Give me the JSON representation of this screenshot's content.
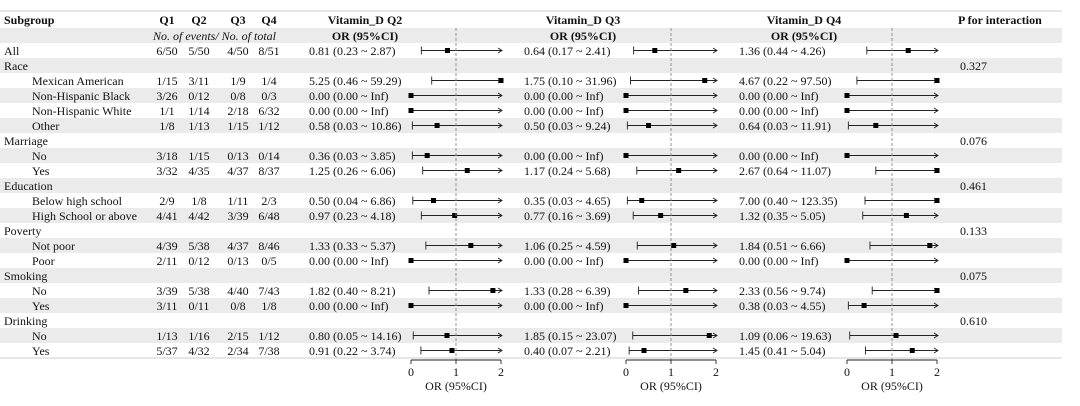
{
  "header": {
    "subgroup": "Subgroup",
    "q1": "Q1",
    "q2": "Q2",
    "q3": "Q3",
    "q4": "Q4",
    "subheader": "No. of events/ No. of total",
    "panel_titles": [
      "Vitamin_D Q2",
      "Vitamin_D Q3",
      "Vitamin_D Q4"
    ],
    "or_ci": "OR (95%CI)",
    "p_interaction": "P for interaction"
  },
  "axis": {
    "label": "OR (95%CI)",
    "ticks": [
      0,
      1,
      2
    ],
    "ref_line": 1
  },
  "colors": {
    "stripe": "#ebebeb",
    "line": "#222222",
    "ref": "#888888"
  },
  "chart_data": {
    "type": "forest",
    "xlim": [
      0,
      2
    ],
    "reference": 1,
    "panels": [
      "Vitamin_D Q2",
      "Vitamin_D Q3",
      "Vitamin_D Q4"
    ],
    "rows": [
      {
        "label": "All",
        "indent": false,
        "events": [
          "6/50",
          "5/50",
          "4/50",
          "8/51"
        ],
        "text": [
          "0.81 (0.23 ~ 2.87)",
          "0.64 (0.17 ~ 2.41)",
          "1.36 (0.44 ~ 4.26)"
        ],
        "est": [
          0.81,
          0.64,
          1.36
        ],
        "lo": [
          0.23,
          0.17,
          0.44
        ],
        "hi": [
          2.87,
          2.41,
          4.26
        ],
        "p": ""
      },
      {
        "label": "Race",
        "indent": false,
        "events": null,
        "text": null,
        "p": "0.327"
      },
      {
        "label": "Mexican American",
        "indent": true,
        "events": [
          "1/15",
          "3/11",
          "1/9",
          "1/4"
        ],
        "text": [
          "5.25 (0.46 ~ 59.29)",
          "1.75 (0.10 ~ 31.96)",
          "4.67 (0.22 ~ 97.50)"
        ],
        "est": [
          5.25,
          1.75,
          4.67
        ],
        "lo": [
          0.46,
          0.1,
          0.22
        ],
        "hi": [
          59.29,
          31.96,
          97.5
        ],
        "p": ""
      },
      {
        "label": "Non-Hispanic Black",
        "indent": true,
        "events": [
          "3/26",
          "0/12",
          "0/8",
          "0/3"
        ],
        "text": [
          "0.00 (0.00 ~ Inf)",
          "0.00 (0.00 ~ Inf)",
          "0.00 (0.00 ~ Inf)"
        ],
        "est": [
          0,
          0,
          0
        ],
        "lo": [
          0,
          0,
          0
        ],
        "hi": [
          "Inf",
          "Inf",
          "Inf"
        ],
        "p": ""
      },
      {
        "label": "Non-Hispanic White",
        "indent": true,
        "events": [
          "1/1",
          "1/14",
          "2/18",
          "6/32"
        ],
        "text": [
          "0.00 (0.00 ~ Inf)",
          "0.00 (0.00 ~ Inf)",
          "0.00 (0.00 ~ Inf)"
        ],
        "est": [
          0,
          0,
          0
        ],
        "lo": [
          0,
          0,
          0
        ],
        "hi": [
          "Inf",
          "Inf",
          "Inf"
        ],
        "p": ""
      },
      {
        "label": "Other",
        "indent": true,
        "events": [
          "1/8",
          "1/13",
          "1/15",
          "1/12"
        ],
        "text": [
          "0.58 (0.03 ~ 10.86)",
          "0.50 (0.03 ~ 9.24)",
          "0.64 (0.03 ~ 11.91)"
        ],
        "est": [
          0.58,
          0.5,
          0.64
        ],
        "lo": [
          0.03,
          0.03,
          0.03
        ],
        "hi": [
          10.86,
          9.24,
          11.91
        ],
        "p": ""
      },
      {
        "label": "Marriage",
        "indent": false,
        "events": null,
        "text": null,
        "p": "0.076"
      },
      {
        "label": "No",
        "indent": true,
        "events": [
          "3/18",
          "1/15",
          "0/13",
          "0/14"
        ],
        "text": [
          "0.36 (0.03 ~ 3.85)",
          "0.00 (0.00 ~ Inf)",
          "0.00 (0.00 ~ Inf)"
        ],
        "est": [
          0.36,
          0,
          0
        ],
        "lo": [
          0.03,
          0,
          0
        ],
        "hi": [
          3.85,
          "Inf",
          "Inf"
        ],
        "p": ""
      },
      {
        "label": "Yes",
        "indent": true,
        "events": [
          "3/32",
          "4/35",
          "4/37",
          "8/37"
        ],
        "text": [
          "1.25 (0.26 ~ 6.06)",
          "1.17 (0.24 ~ 5.68)",
          "2.67 (0.64 ~ 11.07)"
        ],
        "est": [
          1.25,
          1.17,
          2.67
        ],
        "lo": [
          0.26,
          0.24,
          0.64
        ],
        "hi": [
          6.06,
          5.68,
          11.07
        ],
        "p": ""
      },
      {
        "label": "Education",
        "indent": false,
        "events": null,
        "text": null,
        "p": "0.461"
      },
      {
        "label": "Below high school",
        "indent": true,
        "events": [
          "2/9",
          "1/8",
          "1/11",
          "2/3"
        ],
        "text": [
          "0.50 (0.04 ~ 6.86)",
          "0.35 (0.03 ~ 4.65)",
          "7.00 (0.40 ~ 123.35)"
        ],
        "est": [
          0.5,
          0.35,
          7.0
        ],
        "lo": [
          0.04,
          0.03,
          0.4
        ],
        "hi": [
          6.86,
          4.65,
          123.35
        ],
        "p": ""
      },
      {
        "label": "High School or above",
        "indent": true,
        "events": [
          "4/41",
          "4/42",
          "3/39",
          "6/48"
        ],
        "text": [
          "0.97 (0.23 ~ 4.18)",
          "0.77 (0.16 ~ 3.69)",
          "1.32 (0.35 ~ 5.05)"
        ],
        "est": [
          0.97,
          0.77,
          1.32
        ],
        "lo": [
          0.23,
          0.16,
          0.35
        ],
        "hi": [
          4.18,
          3.69,
          5.05
        ],
        "p": ""
      },
      {
        "label": "Poverty",
        "indent": false,
        "events": null,
        "text": null,
        "p": "0.133"
      },
      {
        "label": "Not poor",
        "indent": true,
        "events": [
          "4/39",
          "5/38",
          "4/37",
          "8/46"
        ],
        "text": [
          "1.33 (0.33 ~ 5.37)",
          "1.06 (0.25 ~ 4.59)",
          "1.84 (0.51 ~ 6.66)"
        ],
        "est": [
          1.33,
          1.06,
          1.84
        ],
        "lo": [
          0.33,
          0.25,
          0.51
        ],
        "hi": [
          5.37,
          4.59,
          6.66
        ],
        "p": ""
      },
      {
        "label": "Poor",
        "indent": true,
        "events": [
          "2/11",
          "0/12",
          "0/13",
          "0/5"
        ],
        "text": [
          "0.00 (0.00 ~ Inf)",
          "0.00 (0.00 ~ Inf)",
          "0.00 (0.00 ~ Inf)"
        ],
        "est": [
          0,
          0,
          0
        ],
        "lo": [
          0,
          0,
          0
        ],
        "hi": [
          "Inf",
          "Inf",
          "Inf"
        ],
        "p": ""
      },
      {
        "label": "Smoking",
        "indent": false,
        "events": null,
        "text": null,
        "p": "0.075"
      },
      {
        "label": "No",
        "indent": true,
        "events": [
          "3/39",
          "5/38",
          "4/40",
          "7/43"
        ],
        "text": [
          "1.82 (0.40 ~ 8.21)",
          "1.33 (0.28 ~ 6.39)",
          "2.33 (0.56 ~ 9.74)"
        ],
        "est": [
          1.82,
          1.33,
          2.33
        ],
        "lo": [
          0.4,
          0.28,
          0.56
        ],
        "hi": [
          8.21,
          6.39,
          9.74
        ],
        "p": ""
      },
      {
        "label": "Yes",
        "indent": true,
        "events": [
          "3/11",
          "0/11",
          "0/8",
          "1/8"
        ],
        "text": [
          "0.00 (0.00 ~ Inf)",
          "0.00 (0.00 ~ Inf)",
          "0.38 (0.03 ~ 4.55)"
        ],
        "est": [
          0,
          0,
          0.38
        ],
        "lo": [
          0,
          0,
          0.03
        ],
        "hi": [
          "Inf",
          "Inf",
          4.55
        ],
        "p": ""
      },
      {
        "label": "Drinking",
        "indent": false,
        "events": null,
        "text": null,
        "p": "0.610"
      },
      {
        "label": "No",
        "indent": true,
        "events": [
          "1/13",
          "1/16",
          "2/15",
          "1/12"
        ],
        "text": [
          "0.80 (0.05 ~ 14.16)",
          "1.85 (0.15 ~ 23.07)",
          "1.09 (0.06 ~ 19.63)"
        ],
        "est": [
          0.8,
          1.85,
          1.09
        ],
        "lo": [
          0.05,
          0.15,
          0.06
        ],
        "hi": [
          14.16,
          23.07,
          19.63
        ],
        "p": ""
      },
      {
        "label": "Yes",
        "indent": true,
        "events": [
          "5/37",
          "4/32",
          "2/34",
          "7/38"
        ],
        "text": [
          "0.91 (0.22 ~ 3.74)",
          "0.40 (0.07 ~ 2.21)",
          "1.45 (0.41 ~ 5.04)"
        ],
        "est": [
          0.91,
          0.4,
          1.45
        ],
        "lo": [
          0.22,
          0.07,
          0.41
        ],
        "hi": [
          3.74,
          2.21,
          5.04
        ],
        "p": ""
      }
    ]
  }
}
